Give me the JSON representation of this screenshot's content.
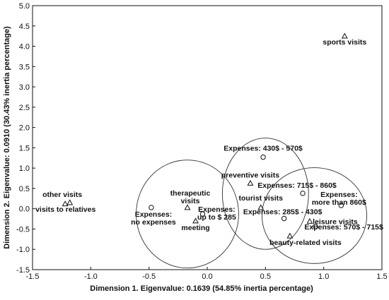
{
  "chart_data": {
    "type": "scatter",
    "xlabel": "Dimension 1. Eigenvalue: 0.1639 (54.85% inertia percentage)",
    "ylabel": "Dimension 2. Eigenvalue: 0.0910 (30.43% inertia percentage)",
    "xlim": [
      -1.5,
      1.5
    ],
    "ylim": [
      -1.5,
      5.0
    ],
    "x_ticks": [
      "-1.5",
      "-1.0",
      "-0.5",
      "0.0",
      "0.5",
      "1.0",
      "1.5"
    ],
    "y_ticks": [
      "-1.5",
      "-1.0",
      "-0.5",
      "0.0",
      "0.5",
      "1.0",
      "1.5",
      "2.0",
      "2.5",
      "3.0",
      "3.5",
      "4.0",
      "4.5",
      "5.0"
    ],
    "grid": false,
    "points": [
      {
        "marker": "triangle",
        "x": 1.18,
        "y": 4.25,
        "label": [
          "sports visits"
        ]
      },
      {
        "marker": "triangle",
        "x": -1.22,
        "y": 0.12,
        "label": [
          "other visits"
        ]
      },
      {
        "marker": "triangle",
        "x": -1.18,
        "y": 0.15,
        "label": [
          "visits to relatives"
        ]
      },
      {
        "marker": "circle",
        "x": 0.48,
        "y": 1.27,
        "label": [
          "Expenses: 430$ - 570$"
        ]
      },
      {
        "marker": "triangle",
        "x": 0.37,
        "y": 0.63,
        "label": [
          "preventive visits"
        ]
      },
      {
        "marker": "triangle",
        "x": -0.17,
        "y": 0.03,
        "label": [
          "therapeutic",
          "visits"
        ]
      },
      {
        "marker": "circle",
        "x": -0.48,
        "y": 0.03,
        "label": [
          "Expenses:",
          "no expenses"
        ]
      },
      {
        "marker": "circle",
        "x": -0.04,
        "y": -0.13,
        "label": [
          "Expenses:",
          "up to $ 285"
        ]
      },
      {
        "marker": "triangle",
        "x": -0.1,
        "y": -0.3,
        "label": [
          "meeting"
        ]
      },
      {
        "marker": "triangle",
        "x": 0.46,
        "y": 0.03,
        "label": [
          "tourist visits"
        ]
      },
      {
        "marker": "circle",
        "x": 0.82,
        "y": 0.38,
        "label": [
          "Expenses: 715$ - 860$"
        ]
      },
      {
        "marker": "circle",
        "x": 1.15,
        "y": 0.08,
        "label": [
          "Expenses:",
          "more than 860$"
        ]
      },
      {
        "marker": "circle",
        "x": 0.66,
        "y": -0.24,
        "label": [
          "Expenses: 285$ - 430$"
        ]
      },
      {
        "marker": "triangle",
        "x": 0.88,
        "y": -0.31,
        "label": [
          "leisure visits"
        ]
      },
      {
        "marker": "circle",
        "x": 0.93,
        "y": -0.44,
        "label": [
          "Expenses: 570$ - 715$"
        ]
      },
      {
        "marker": "triangle",
        "x": 0.71,
        "y": -0.67,
        "label": [
          "beauty-related visits"
        ]
      }
    ],
    "ellipses": [
      {
        "cx": -0.17,
        "cy": -0.13,
        "rx": 0.44,
        "ry": 1.33
      },
      {
        "cx": 0.5,
        "cy": 0.37,
        "rx": 0.37,
        "ry": 1.37
      },
      {
        "cx": 0.92,
        "cy": -0.17,
        "rx": 0.45,
        "ry": 1.18
      }
    ]
  }
}
